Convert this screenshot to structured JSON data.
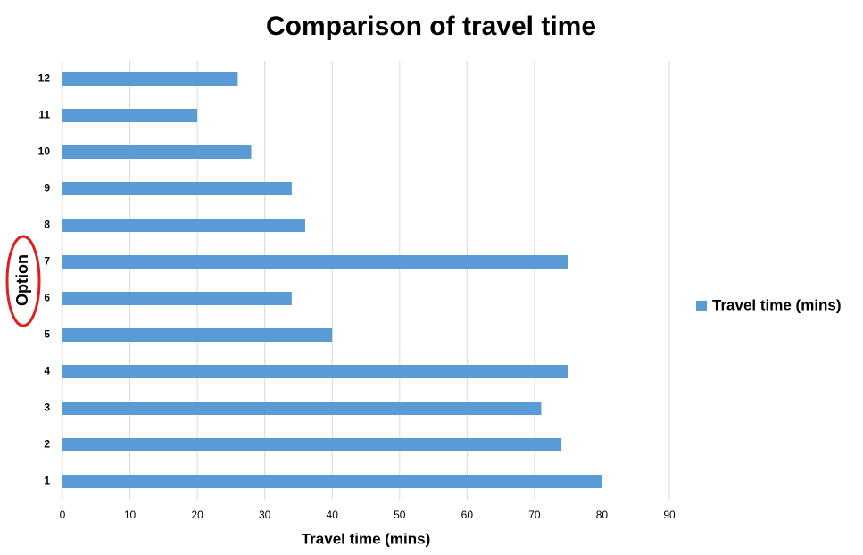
{
  "chart_data": {
    "type": "bar",
    "orientation": "horizontal",
    "title": "Comparison of travel time",
    "x_label": "Travel time (mins)",
    "y_label": "Option",
    "categories": [
      "1",
      "2",
      "3",
      "4",
      "5",
      "6",
      "7",
      "8",
      "9",
      "10",
      "11",
      "12"
    ],
    "series": [
      {
        "name": "Travel time (mins)",
        "color": "#5b9bd5",
        "values": [
          80,
          74,
          71,
          75,
          40,
          34,
          75,
          36,
          34,
          28,
          20,
          26
        ]
      }
    ],
    "xlim": [
      0,
      90
    ],
    "xticks": [
      0,
      10,
      20,
      30,
      40,
      50,
      60,
      70,
      80,
      90
    ],
    "grid": true,
    "legend": "right"
  }
}
